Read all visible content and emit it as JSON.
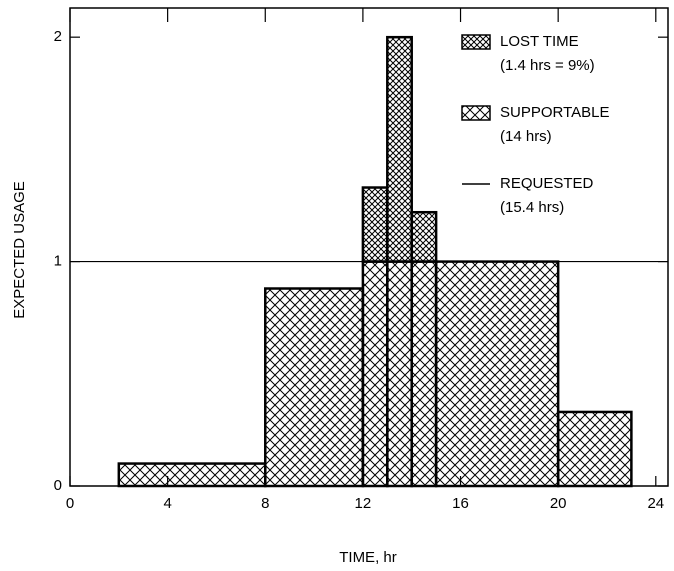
{
  "chart_data": {
    "type": "histogram",
    "x_label": "TIME, hr",
    "y_label": "EXPECTED USAGE",
    "bins": [
      0,
      2,
      8,
      12,
      13,
      14,
      15,
      20,
      23,
      24
    ],
    "series": [
      {
        "name": "SUPPORTABLE",
        "detail": "(14 hrs)",
        "color": "#000000",
        "values": [
          0,
          0.1,
          0.88,
          1,
          1,
          1,
          1,
          0.33,
          0
        ]
      },
      {
        "name": "LOST TIME",
        "detail": "(1.4 hrs = 9%)",
        "color": "#000000",
        "values": [
          0,
          0,
          0,
          0.33,
          1.0,
          0.22,
          0,
          0,
          0
        ]
      }
    ],
    "requested": {
      "name": "REQUESTED",
      "detail": "(15.4 hrs)",
      "value": 1
    },
    "xlim": [
      0,
      24.5
    ],
    "ylim": [
      0,
      2.13
    ],
    "xticks": [
      0,
      4,
      8,
      12,
      16,
      20,
      24
    ],
    "yticks": [
      0,
      1,
      2
    ]
  }
}
